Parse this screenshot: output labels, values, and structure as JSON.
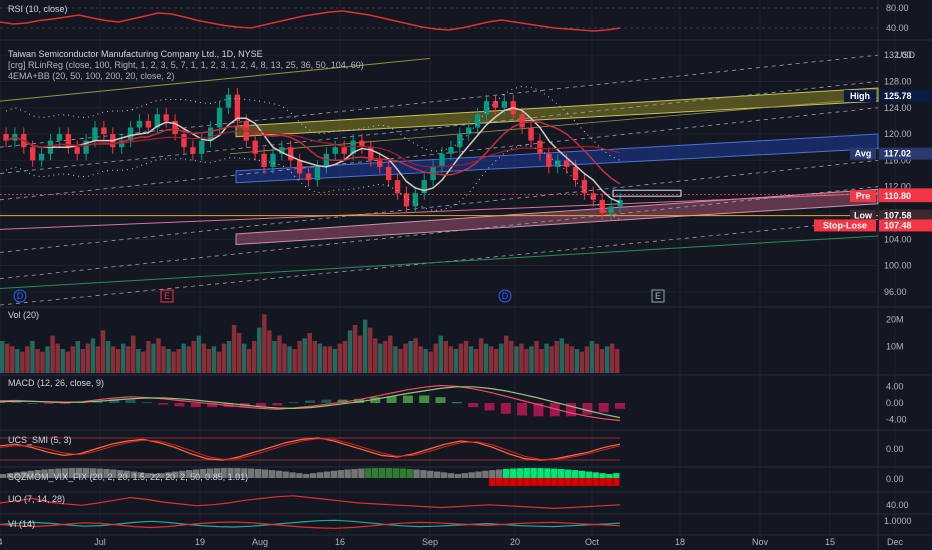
{
  "colors": {
    "bg": "#131722",
    "grid": "#1e2230",
    "up": "#089981",
    "down": "#f23645",
    "rsi": "#e03030",
    "chan_high": "#8a8420",
    "chan_avg": "#1c3a9a",
    "chan_low": "#a05070",
    "chan_low2": "#b06880",
    "stop": "#f5a623"
  },
  "price_pane": {
    "title": "Taiwan Semiconductor Manufacturing Company Ltd., 1D, NYSE",
    "ind1": "[crg] RLinReg (close, 100, Right, 1, 2, 3, 5, 7, 1, 1, 2, 3, 1, 2, 4, 8, 13, 25, 36, 50, 104, 60)",
    "ind2": "4EMA+BB (20, 50, 100, 200, 20, close, 2)",
    "currency": "USD",
    "ticks": [
      "132.00",
      "128.00",
      "124.00",
      "120.00",
      "116.00",
      "112.00",
      "108.00",
      "104.00",
      "100.00",
      "96.00"
    ],
    "tick_values": [
      132,
      128,
      124,
      120,
      116,
      112,
      108,
      104,
      100,
      96
    ],
    "labels": [
      {
        "text": "High",
        "value": "125.78",
        "price": 125.78,
        "bg": "#0d1a40",
        "fg": "#ffffff"
      },
      {
        "text": "Avg",
        "value": "117.02",
        "price": 117.02,
        "bg": "#2a3a70",
        "fg": "#ffffff"
      },
      {
        "text": "",
        "value": "110.83",
        "price": 110.83,
        "bg": "#f23645",
        "fg": "#ffffff"
      },
      {
        "text": "Pre",
        "value": "110.80",
        "price": 110.55,
        "bg": "#f23645",
        "fg": "#ffffff"
      },
      {
        "text": "Low",
        "value": "107.58",
        "price": 107.58,
        "bg": "#3a2a30",
        "fg": "#ffffff"
      },
      {
        "text": "Stop-Lose",
        "value": "107.48",
        "price": 106.1,
        "bg": "#f23645",
        "fg": "#ffffff"
      }
    ],
    "events": [
      {
        "text": "D"
      },
      {
        "text": "E"
      },
      {
        "text": "D"
      },
      {
        "text": "E"
      }
    ]
  },
  "chart_data": [
    {
      "type": "line",
      "title": "RSI (10, close)",
      "y_ticks": [
        "80.00",
        "40.00"
      ],
      "ylim": [
        20,
        90
      ],
      "series": [
        {
          "values": [
            52,
            48,
            50,
            55,
            58,
            62,
            66,
            60,
            55,
            52,
            58,
            64,
            70,
            68,
            62,
            55,
            50,
            45,
            42,
            40,
            46,
            52,
            58,
            64,
            68,
            72,
            74,
            70,
            66,
            60,
            54,
            48,
            42,
            38,
            36,
            40,
            46,
            52,
            56,
            52,
            48,
            44,
            40,
            38,
            36,
            34,
            36,
            40
          ]
        }
      ]
    },
    {
      "type": "bar",
      "title": "Vol (20)",
      "y_ticks": [
        "20M",
        "10M"
      ],
      "ylim": [
        0,
        24
      ],
      "values": [
        12,
        11,
        10,
        9,
        8,
        10,
        12,
        9,
        8,
        10,
        14,
        11,
        9,
        8,
        10,
        12,
        9,
        11,
        13,
        10,
        16,
        12,
        10,
        9,
        11,
        10,
        14,
        9,
        8,
        12,
        11,
        13,
        10,
        9,
        8,
        9,
        11,
        10,
        12,
        14,
        11,
        9,
        10,
        8,
        11,
        12,
        18,
        15,
        11,
        9,
        12,
        17,
        22,
        16,
        12,
        14,
        11,
        10,
        9,
        12,
        13,
        15,
        12,
        11,
        10,
        10,
        9,
        11,
        12,
        16,
        18,
        14,
        20,
        17,
        13,
        11,
        12,
        14,
        10,
        9,
        11,
        12,
        13,
        10,
        9,
        8,
        11,
        14,
        12,
        10,
        9,
        11,
        12,
        10,
        9,
        13,
        11,
        10,
        9,
        11,
        14,
        12,
        10,
        11,
        9,
        10,
        12,
        9,
        11,
        10,
        12,
        13,
        11,
        10,
        9,
        8,
        10,
        12,
        11,
        9,
        10,
        11,
        9
      ]
    },
    {
      "type": "line",
      "title": "MACD (12, 26, close, 9)",
      "y_ticks": [
        "4.00",
        "0.00",
        "-4.00"
      ],
      "ylim": [
        -6,
        6
      ],
      "series": [
        {
          "values": [
            0.5,
            0.6,
            0.4,
            0.2,
            0.1,
            0.3,
            0.8,
            1.2,
            1.5,
            1.3,
            1.0,
            0.6,
            0.2,
            -0.2,
            -0.6,
            -1.0,
            -1.3,
            -1.5,
            -1.2,
            -0.8,
            -0.3,
            0.2,
            0.8,
            1.6,
            2.4,
            3.2,
            3.8,
            4.2,
            4.0,
            3.4,
            2.6,
            1.6,
            0.6,
            -0.4,
            -1.4,
            -2.4,
            -3.2,
            -3.8,
            -4.2
          ]
        },
        {
          "values": [
            0.3,
            0.4,
            0.4,
            0.3,
            0.2,
            0.2,
            0.4,
            0.7,
            1.0,
            1.2,
            1.2,
            1.0,
            0.7,
            0.3,
            -0.1,
            -0.5,
            -0.9,
            -1.2,
            -1.3,
            -1.1,
            -0.7,
            -0.2,
            0.3,
            0.9,
            1.6,
            2.3,
            2.9,
            3.5,
            3.9,
            3.9,
            3.5,
            2.9,
            2.1,
            1.2,
            0.2,
            -0.8,
            -1.8,
            -2.7,
            -3.5
          ]
        }
      ]
    },
    {
      "type": "line",
      "title": "UCS_SMI (5, 3)",
      "y_ticks": [
        "0.00"
      ],
      "ylim": [
        -100,
        100
      ],
      "series": [
        {
          "values": [
            20,
            30,
            10,
            -20,
            -40,
            -30,
            0,
            30,
            50,
            60,
            40,
            10,
            -30,
            -60,
            -70,
            -50,
            -20,
            10,
            40,
            60,
            70,
            50,
            20,
            -10,
            -40,
            -50,
            -30,
            0,
            30,
            50,
            40,
            10,
            -30,
            -60,
            -70,
            -60,
            -40,
            -20,
            10,
            30
          ]
        },
        {
          "values": [
            10,
            20,
            20,
            0,
            -25,
            -35,
            -15,
            15,
            40,
            55,
            50,
            25,
            -10,
            -45,
            -65,
            -60,
            -35,
            -5,
            25,
            50,
            65,
            60,
            35,
            5,
            -25,
            -45,
            -40,
            -15,
            15,
            40,
            45,
            25,
            -10,
            -45,
            -65,
            -65,
            -50,
            -30,
            -5,
            20
          ]
        }
      ]
    },
    {
      "type": "bar",
      "title": "SQZMOM_VIX_FIX (20, 2, 20, 1.5, 22, 20, 2, 50, 0.85, 1.01)",
      "y_ticks": [
        "0.00"
      ],
      "ylim": [
        -10,
        10
      ]
    },
    {
      "type": "line",
      "title": "UO (7, 14, 28)",
      "y_ticks": [
        "40.00"
      ],
      "ylim": [
        30,
        70
      ],
      "series": [
        {
          "values": [
            50,
            55,
            60,
            52,
            48,
            45,
            50,
            56,
            62,
            58,
            52,
            48,
            44,
            46,
            50,
            56,
            60,
            64,
            66,
            62,
            58,
            54,
            50,
            48,
            46,
            44,
            42,
            40,
            42,
            44,
            46,
            44,
            42,
            40,
            38,
            40,
            42,
            44,
            46
          ]
        }
      ]
    },
    {
      "type": "line",
      "title": "VI (14)",
      "y_ticks": [
        "1.0000"
      ],
      "ylim": [
        0.6,
        1.4
      ],
      "series": [
        {
          "values": [
            1.0,
            1.05,
            1.1,
            1.05,
            0.98,
            0.92,
            0.95,
            1.02,
            1.1,
            1.15,
            1.1,
            1.02,
            0.95,
            0.9,
            0.88,
            0.92,
            0.98,
            1.05,
            1.12,
            1.18,
            1.2,
            1.15,
            1.08,
            1.0,
            0.94,
            0.9,
            0.92,
            0.96,
            1.0,
            1.04,
            1.0,
            0.95,
            0.92,
            0.9,
            0.94,
            0.98,
            1.02,
            1.06
          ]
        },
        {
          "values": [
            1.0,
            0.95,
            0.9,
            0.95,
            1.02,
            1.08,
            1.05,
            0.98,
            0.9,
            0.86,
            0.9,
            0.98,
            1.05,
            1.1,
            1.12,
            1.08,
            1.02,
            0.95,
            0.88,
            0.84,
            0.82,
            0.86,
            0.92,
            1.0,
            1.06,
            1.1,
            1.08,
            1.04,
            1.0,
            0.96,
            1.0,
            1.05,
            1.08,
            1.1,
            1.06,
            1.02,
            0.98,
            0.94
          ]
        }
      ]
    },
    {
      "type": "line",
      "title": "Taiwan Semiconductor Manufacturing Company Ltd., 1D, NYSE",
      "ylim": [
        94,
        134
      ],
      "x_labels": [
        "4",
        "Jul",
        "19",
        "Aug",
        "16",
        "Sep",
        "20",
        "Oct",
        "18",
        "Nov",
        "15",
        "Dec"
      ],
      "x_positions": [
        0,
        100,
        200,
        260,
        340,
        430,
        515,
        592,
        680,
        760,
        830,
        895
      ],
      "candles": [
        [
          120,
          119,
          121,
          118
        ],
        [
          119,
          120,
          121,
          118
        ],
        [
          120,
          118,
          121,
          117
        ],
        [
          118,
          116,
          119,
          115
        ],
        [
          116,
          117,
          118,
          115
        ],
        [
          117,
          119,
          120,
          116
        ],
        [
          119,
          120,
          121,
          118
        ],
        [
          120,
          118,
          121,
          117
        ],
        [
          118,
          117,
          119,
          116
        ],
        [
          117,
          119,
          120,
          116
        ],
        [
          119,
          121,
          122,
          118
        ],
        [
          121,
          120,
          122,
          119
        ],
        [
          120,
          118,
          121,
          117
        ],
        [
          118,
          119,
          120,
          117
        ],
        [
          119,
          121,
          122,
          118
        ],
        [
          121,
          122,
          123,
          120
        ],
        [
          122,
          121,
          123,
          120
        ],
        [
          121,
          123,
          124,
          120
        ],
        [
          123,
          122,
          124,
          121
        ],
        [
          122,
          120,
          123,
          119
        ],
        [
          120,
          118,
          121,
          117
        ],
        [
          118,
          117,
          119,
          116
        ],
        [
          117,
          119,
          120,
          116
        ],
        [
          119,
          121,
          122,
          118
        ],
        [
          121,
          124,
          125,
          120
        ],
        [
          124,
          126,
          127,
          123
        ],
        [
          126,
          122,
          127,
          121
        ],
        [
          122,
          119,
          123,
          118
        ],
        [
          119,
          117,
          120,
          116
        ],
        [
          117,
          115,
          118,
          114
        ],
        [
          115,
          117,
          118,
          114
        ],
        [
          117,
          118,
          119,
          116
        ],
        [
          118,
          116,
          119,
          115
        ],
        [
          116,
          114,
          117,
          113
        ],
        [
          114,
          113,
          115,
          112
        ],
        [
          113,
          115,
          116,
          112
        ],
        [
          115,
          117,
          118,
          114
        ],
        [
          117,
          118,
          119,
          116
        ],
        [
          118,
          117,
          119,
          116
        ],
        [
          117,
          119,
          120,
          116
        ],
        [
          119,
          118,
          120,
          117
        ],
        [
          118,
          116,
          119,
          115
        ],
        [
          116,
          115,
          117,
          114
        ],
        [
          115,
          113,
          116,
          112
        ],
        [
          113,
          111,
          114,
          110
        ],
        [
          111,
          109,
          112,
          108
        ],
        [
          109,
          111,
          112,
          108
        ],
        [
          111,
          113,
          114,
          110
        ],
        [
          113,
          115,
          116,
          112
        ],
        [
          115,
          117,
          118,
          114
        ],
        [
          117,
          118,
          119,
          116
        ],
        [
          118,
          120,
          121,
          117
        ],
        [
          120,
          121,
          122,
          119
        ],
        [
          121,
          123,
          124,
          120
        ],
        [
          123,
          125,
          126,
          122
        ],
        [
          125,
          124,
          126,
          123
        ],
        [
          124,
          125,
          126,
          123
        ],
        [
          125,
          123,
          126,
          122
        ],
        [
          123,
          121,
          124,
          120
        ],
        [
          121,
          119,
          122,
          118
        ],
        [
          119,
          117,
          120,
          116
        ],
        [
          117,
          115,
          118,
          114
        ],
        [
          115,
          116,
          117,
          114
        ],
        [
          116,
          115,
          117,
          114
        ],
        [
          115,
          113,
          116,
          112
        ],
        [
          113,
          111,
          114,
          110
        ],
        [
          111,
          110,
          112,
          109
        ],
        [
          110,
          108,
          111,
          107
        ],
        [
          108,
          109,
          110,
          107
        ],
        [
          109,
          110,
          111,
          108
        ]
      ]
    }
  ]
}
